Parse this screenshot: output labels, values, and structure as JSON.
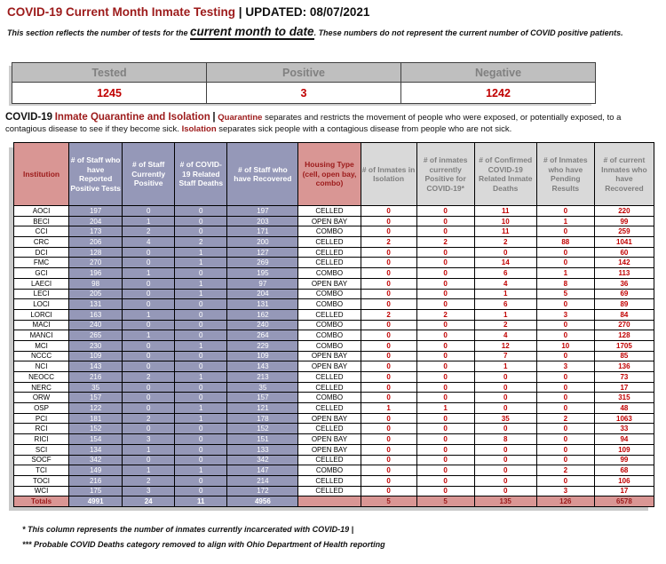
{
  "title": {
    "red_part": "COVID-19 Current Month Inmate Testing",
    "separator": "|",
    "black_part": "UPDATED:  08/07/2021"
  },
  "subtitle": {
    "pre": "This section reflects the number of tests for the ",
    "emphasis": "current month to date",
    "post": ". These numbers do not represent the current number of COVID positive patients."
  },
  "summary_table": {
    "columns": [
      "Tested",
      "Positive",
      "Negative"
    ],
    "values": [
      "1245",
      "3",
      "1242"
    ]
  },
  "section_heading": {
    "black_title": "COVID-19",
    "red_title": "Inmate Quarantine and Isolation",
    "separator": "|",
    "kw1": "Quarantine",
    "text1": " separates and restricts the movement of people who were exposed, or potentially exposed, to a contagious disease to see if they become sick. ",
    "kw2": "Isolation",
    "text2": " separates sick people with a contagious disease from people who are not sick."
  },
  "main_table": {
    "columns": [
      {
        "key": "institution",
        "label": "Institution",
        "group": "pink"
      },
      {
        "key": "staff_reported_positive",
        "label": "# of Staff who have Reported Positive Tests",
        "group": "slate"
      },
      {
        "key": "staff_currently_positive",
        "label": "# of Staff Currently Positive",
        "group": "slate"
      },
      {
        "key": "staff_deaths",
        "label": "# of COVID-19 Related Staff Deaths",
        "group": "slate"
      },
      {
        "key": "staff_recovered",
        "label": "# of Staff who have Recovered",
        "group": "slate"
      },
      {
        "key": "housing_type",
        "label": "Housing Type (cell, open bay, combo)",
        "group": "pink"
      },
      {
        "key": "inmates_isolation",
        "label": "# of Inmates in Isolation",
        "group": "gray"
      },
      {
        "key": "inmates_positive",
        "label": "# of inmates currently Positive for COVID-19*",
        "group": "gray"
      },
      {
        "key": "inmate_deaths",
        "label": "# of Confirmed COVID-19 Related Inmate Deaths",
        "group": "gray"
      },
      {
        "key": "pending_results",
        "label": "# of Inmates who have Pending Results",
        "group": "gray"
      },
      {
        "key": "inmates_recovered",
        "label": "# of current Inmates who have Recovered",
        "group": "gray"
      }
    ],
    "rows": [
      [
        "AOCI",
        "197",
        "0",
        "0",
        "197",
        "CELLED",
        "0",
        "0",
        "11",
        "0",
        "220"
      ],
      [
        "BECI",
        "204",
        "1",
        "0",
        "203",
        "OPEN BAY",
        "0",
        "0",
        "10",
        "1",
        "99"
      ],
      [
        "CCI",
        "173",
        "2",
        "0",
        "171",
        "COMBO",
        "0",
        "0",
        "11",
        "0",
        "259"
      ],
      [
        "CRC",
        "206",
        "4",
        "2",
        "200",
        "CELLED",
        "2",
        "2",
        "2",
        "88",
        "1041"
      ],
      [
        "DCI",
        "128",
        "0",
        "1",
        "127",
        "CELLED",
        "0",
        "0",
        "0",
        "0",
        "60"
      ],
      [
        "FMC",
        "270",
        "0",
        "1",
        "269",
        "CELLED",
        "0",
        "0",
        "14",
        "0",
        "142"
      ],
      [
        "GCI",
        "196",
        "1",
        "0",
        "195",
        "COMBO",
        "0",
        "0",
        "6",
        "1",
        "113"
      ],
      [
        "LAECI",
        "98",
        "0",
        "1",
        "97",
        "OPEN BAY",
        "0",
        "0",
        "4",
        "8",
        "36"
      ],
      [
        "LECI",
        "205",
        "0",
        "1",
        "204",
        "COMBO",
        "0",
        "0",
        "1",
        "5",
        "69"
      ],
      [
        "LOCI",
        "131",
        "0",
        "0",
        "131",
        "COMBO",
        "0",
        "0",
        "6",
        "0",
        "89"
      ],
      [
        "LORCI",
        "163",
        "1",
        "0",
        "162",
        "CELLED",
        "2",
        "2",
        "1",
        "3",
        "84"
      ],
      [
        "MACI",
        "240",
        "0",
        "0",
        "240",
        "COMBO",
        "0",
        "0",
        "2",
        "0",
        "270"
      ],
      [
        "MANCI",
        "265",
        "1",
        "0",
        "264",
        "COMBO",
        "0",
        "0",
        "4",
        "0",
        "128"
      ],
      [
        "MCI",
        "230",
        "0",
        "1",
        "229",
        "COMBO",
        "0",
        "0",
        "12",
        "10",
        "1705"
      ],
      [
        "NCCC",
        "109",
        "0",
        "0",
        "109",
        "OPEN BAY",
        "0",
        "0",
        "7",
        "0",
        "85"
      ],
      [
        "NCI",
        "143",
        "0",
        "0",
        "143",
        "OPEN BAY",
        "0",
        "0",
        "1",
        "3",
        "136"
      ],
      [
        "NEOCC",
        "216",
        "2",
        "1",
        "213",
        "CELLED",
        "0",
        "0",
        "0",
        "0",
        "73"
      ],
      [
        "NERC",
        "35",
        "0",
        "0",
        "35",
        "CELLED",
        "0",
        "0",
        "0",
        "0",
        "17"
      ],
      [
        "ORW",
        "157",
        "0",
        "0",
        "157",
        "COMBO",
        "0",
        "0",
        "0",
        "0",
        "315"
      ],
      [
        "OSP",
        "122",
        "0",
        "1",
        "121",
        "CELLED",
        "1",
        "1",
        "0",
        "0",
        "48"
      ],
      [
        "PCI",
        "181",
        "2",
        "1",
        "178",
        "OPEN BAY",
        "0",
        "0",
        "35",
        "2",
        "1063"
      ],
      [
        "RCI",
        "152",
        "0",
        "0",
        "152",
        "CELLED",
        "0",
        "0",
        "0",
        "0",
        "33"
      ],
      [
        "RICI",
        "154",
        "3",
        "0",
        "151",
        "OPEN BAY",
        "0",
        "0",
        "8",
        "0",
        "94"
      ],
      [
        "SCI",
        "134",
        "1",
        "0",
        "133",
        "OPEN BAY",
        "0",
        "0",
        "0",
        "0",
        "109"
      ],
      [
        "SOCF",
        "342",
        "0",
        "0",
        "342",
        "CELLED",
        "0",
        "0",
        "0",
        "0",
        "99"
      ],
      [
        "TCI",
        "149",
        "1",
        "1",
        "147",
        "COMBO",
        "0",
        "0",
        "0",
        "2",
        "68"
      ],
      [
        "TOCI",
        "216",
        "2",
        "0",
        "214",
        "CELLED",
        "0",
        "0",
        "0",
        "0",
        "106"
      ],
      [
        "WCI",
        "175",
        "3",
        "0",
        "172",
        "CELLED",
        "0",
        "0",
        "0",
        "3",
        "17"
      ]
    ],
    "totals": [
      "Totals",
      "4991",
      "24",
      "11",
      "4956",
      "",
      "5",
      "5",
      "135",
      "126",
      "6578"
    ]
  },
  "footnotes": [
    "* This column represents the number of inmates currently incarcerated with COVID-19 |",
    "*** Probable COVID Deaths category removed to align with Ohio Department of Health reporting"
  ],
  "colors": {
    "heading_red": "#9c1a1a",
    "value_red": "#c00000",
    "header_pink": "#d99694",
    "header_slate": "#9598b8",
    "header_gray_bg": "#d9d9d9",
    "header_gray_text": "#7f7f7f",
    "summary_header_bg": "#bfbfbf",
    "summary_header_text": "#808080"
  }
}
